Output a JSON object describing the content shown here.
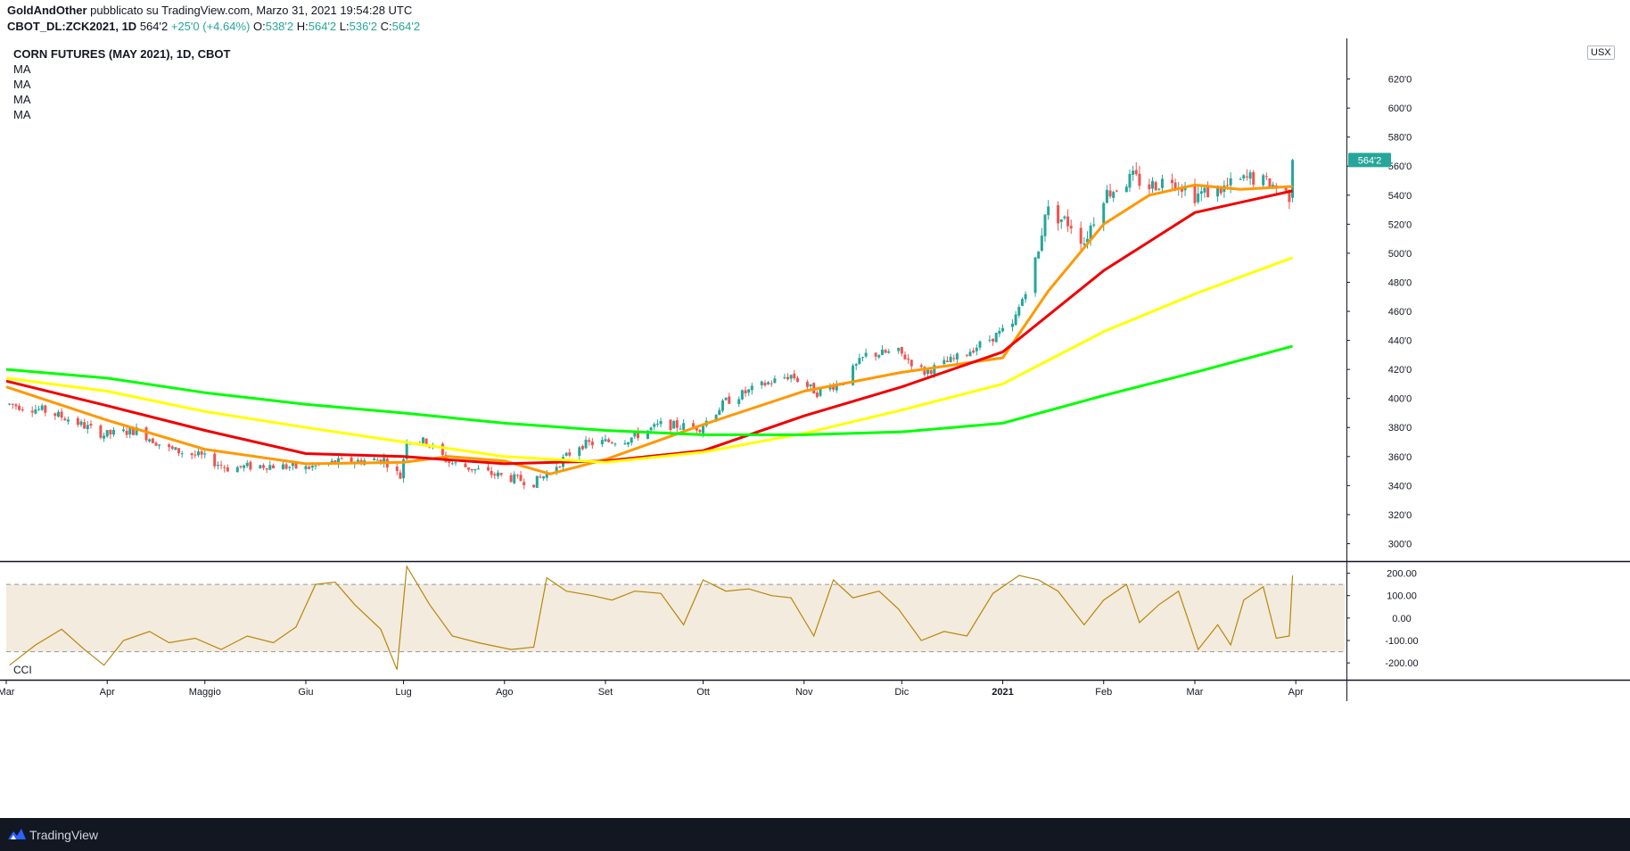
{
  "header": {
    "author": "GoldAndOther",
    "published": "pubblicato su TradingView.com, Marzo 31, 2021 19:54:28 UTC",
    "symbol": "CBOT_DL:ZCK2021, 1D",
    "last": "564'2",
    "change": "+25'0 (+4.64%)",
    "open_label": "O:",
    "open": "538'2",
    "high_label": "H:",
    "high": "564'2",
    "low_label": "L:",
    "low": "536'2",
    "close_label": "C:",
    "close": "564'2"
  },
  "legend": {
    "title": "CORN FUTURES (MAY 2021), 1D, CBOT",
    "indicators": [
      "MA",
      "MA",
      "MA",
      "MA"
    ]
  },
  "currency": "USX",
  "cci_label": "CCI",
  "footer": {
    "brand": "TradingView"
  },
  "colors": {
    "up": "#26a69a",
    "down": "#ef5350",
    "ma_orange": "#ff9800",
    "ma_red": "#f00000",
    "ma_yellow": "#ffff00",
    "ma_green": "#00ff00",
    "cci_line": "#b8860b",
    "cci_band": "#f3ebdd"
  },
  "chart_data": [
    {
      "type": "candlestick",
      "title": "CORN FUTURES (MAY 2021), 1D, CBOT",
      "x_ticks": [
        "Mar",
        "Apr",
        "Maggio",
        "Giu",
        "Lug",
        "Ago",
        "Set",
        "Ott",
        "Nov",
        "Dic",
        "2021",
        "Feb",
        "Mar",
        "Apr"
      ],
      "y_ticks": [
        "300'0",
        "320'0",
        "340'0",
        "360'0",
        "380'0",
        "400'0",
        "420'0",
        "440'0",
        "460'0",
        "480'0",
        "500'0",
        "520'0",
        "540'0",
        "560'0",
        "580'0",
        "600'0",
        "620'0"
      ],
      "ylim": [
        288,
        648
      ],
      "last_price_label": "564'2",
      "price_anchors": [
        [
          "2020-03-02",
          396
        ],
        [
          "2020-03-12",
          392
        ],
        [
          "2020-03-20",
          386
        ],
        [
          "2020-03-31",
          375
        ],
        [
          "2020-04-10",
          378
        ],
        [
          "2020-04-20",
          365
        ],
        [
          "2020-04-30",
          360
        ],
        [
          "2020-05-08",
          352
        ],
        [
          "2020-05-20",
          354
        ],
        [
          "2020-06-01",
          352
        ],
        [
          "2020-06-10",
          356
        ],
        [
          "2020-06-25",
          358
        ],
        [
          "2020-06-30",
          346
        ],
        [
          "2020-07-02",
          372
        ],
        [
          "2020-07-08",
          370
        ],
        [
          "2020-07-15",
          356
        ],
        [
          "2020-07-28",
          348
        ],
        [
          "2020-08-10",
          342
        ],
        [
          "2020-08-14",
          348
        ],
        [
          "2020-08-24",
          368
        ],
        [
          "2020-09-08",
          372
        ],
        [
          "2020-09-18",
          382
        ],
        [
          "2020-09-30",
          380
        ],
        [
          "2020-10-08",
          398
        ],
        [
          "2020-10-20",
          410
        ],
        [
          "2020-10-28",
          416
        ],
        [
          "2020-11-05",
          404
        ],
        [
          "2020-11-13",
          412
        ],
        [
          "2020-11-20",
          430
        ],
        [
          "2020-11-30",
          432
        ],
        [
          "2020-12-08",
          418
        ],
        [
          "2020-12-18",
          428
        ],
        [
          "2021-01-04",
          450
        ],
        [
          "2021-01-12",
          500
        ],
        [
          "2021-01-14",
          530
        ],
        [
          "2021-01-22",
          520
        ],
        [
          "2021-01-26",
          508
        ],
        [
          "2021-02-01",
          540
        ],
        [
          "2021-02-10",
          552
        ],
        [
          "2021-02-15",
          546
        ],
        [
          "2021-02-22",
          552
        ],
        [
          "2021-03-01",
          540
        ],
        [
          "2021-03-10",
          545
        ],
        [
          "2021-03-18",
          552
        ],
        [
          "2021-03-25",
          547
        ],
        [
          "2021-03-30",
          540
        ],
        [
          "2021-03-31",
          564.25
        ]
      ],
      "moving_averages": [
        {
          "label": "MA",
          "color": "#ff9800",
          "points": [
            [
              "2020-03-01",
              408
            ],
            [
              "2020-04-01",
              385
            ],
            [
              "2020-05-01",
              365
            ],
            [
              "2020-06-01",
              355
            ],
            [
              "2020-07-01",
              356
            ],
            [
              "2020-07-15",
              360
            ],
            [
              "2020-08-01",
              357
            ],
            [
              "2020-08-15",
              348
            ],
            [
              "2020-09-01",
              358
            ],
            [
              "2020-10-01",
              382
            ],
            [
              "2020-11-01",
              405
            ],
            [
              "2020-12-01",
              418
            ],
            [
              "2021-01-01",
              428
            ],
            [
              "2021-01-15",
              474
            ],
            [
              "2021-02-01",
              520
            ],
            [
              "2021-02-15",
              540
            ],
            [
              "2021-03-01",
              547
            ],
            [
              "2021-03-15",
              544
            ],
            [
              "2021-03-31",
              546
            ]
          ]
        },
        {
          "label": "MA",
          "color": "#f00000",
          "points": [
            [
              "2020-03-01",
              412
            ],
            [
              "2020-04-01",
              395
            ],
            [
              "2020-05-01",
              378
            ],
            [
              "2020-06-01",
              362
            ],
            [
              "2020-07-01",
              360
            ],
            [
              "2020-08-01",
              355
            ],
            [
              "2020-09-01",
              357
            ],
            [
              "2020-10-01",
              364
            ],
            [
              "2020-11-01",
              388
            ],
            [
              "2020-12-01",
              408
            ],
            [
              "2021-01-01",
              432
            ],
            [
              "2021-02-01",
              488
            ],
            [
              "2021-03-01",
              528
            ],
            [
              "2021-03-31",
              543
            ]
          ]
        },
        {
          "label": "MA",
          "color": "#ffff00",
          "points": [
            [
              "2020-03-01",
              414
            ],
            [
              "2020-04-01",
              405
            ],
            [
              "2020-05-01",
              391
            ],
            [
              "2020-06-01",
              380
            ],
            [
              "2020-07-01",
              370
            ],
            [
              "2020-08-01",
              360
            ],
            [
              "2020-09-01",
              356
            ],
            [
              "2020-10-01",
              363
            ],
            [
              "2020-11-01",
              376
            ],
            [
              "2020-12-01",
              392
            ],
            [
              "2021-01-01",
              410
            ],
            [
              "2021-02-01",
              446
            ],
            [
              "2021-03-01",
              472
            ],
            [
              "2021-03-31",
              497
            ]
          ]
        },
        {
          "label": "MA",
          "color": "#00ff00",
          "points": [
            [
              "2020-03-01",
              420
            ],
            [
              "2020-04-01",
              414
            ],
            [
              "2020-05-01",
              404
            ],
            [
              "2020-06-01",
              396
            ],
            [
              "2020-07-01",
              390
            ],
            [
              "2020-08-01",
              383
            ],
            [
              "2020-09-01",
              378
            ],
            [
              "2020-10-01",
              375
            ],
            [
              "2020-11-01",
              375
            ],
            [
              "2020-12-01",
              377
            ],
            [
              "2021-01-01",
              383
            ],
            [
              "2021-02-01",
              402
            ],
            [
              "2021-03-01",
              418
            ],
            [
              "2021-03-31",
              436
            ]
          ]
        }
      ]
    },
    {
      "type": "line",
      "title": "CCI",
      "y_ticks": [
        "200.00",
        "100.00",
        "0.00",
        "-100.00",
        "-200.00"
      ],
      "ylim": [
        -275,
        250
      ],
      "bands": [
        -150,
        150
      ],
      "points": [
        [
          "2020-03-02",
          -210
        ],
        [
          "2020-03-10",
          -120
        ],
        [
          "2020-03-18",
          -50
        ],
        [
          "2020-03-25",
          -140
        ],
        [
          "2020-03-31",
          -210
        ],
        [
          "2020-04-06",
          -100
        ],
        [
          "2020-04-14",
          -60
        ],
        [
          "2020-04-20",
          -110
        ],
        [
          "2020-04-28",
          -90
        ],
        [
          "2020-05-06",
          -140
        ],
        [
          "2020-05-14",
          -80
        ],
        [
          "2020-05-22",
          -110
        ],
        [
          "2020-05-29",
          -40
        ],
        [
          "2020-06-04",
          150
        ],
        [
          "2020-06-10",
          160
        ],
        [
          "2020-06-16",
          60
        ],
        [
          "2020-06-24",
          -50
        ],
        [
          "2020-06-29",
          -230
        ],
        [
          "2020-07-02",
          230
        ],
        [
          "2020-07-09",
          60
        ],
        [
          "2020-07-16",
          -80
        ],
        [
          "2020-07-24",
          -110
        ],
        [
          "2020-08-03",
          -140
        ],
        [
          "2020-08-10",
          -130
        ],
        [
          "2020-08-14",
          180
        ],
        [
          "2020-08-20",
          120
        ],
        [
          "2020-08-28",
          100
        ],
        [
          "2020-09-03",
          80
        ],
        [
          "2020-09-10",
          120
        ],
        [
          "2020-09-18",
          110
        ],
        [
          "2020-09-25",
          -30
        ],
        [
          "2020-10-01",
          170
        ],
        [
          "2020-10-08",
          120
        ],
        [
          "2020-10-15",
          130
        ],
        [
          "2020-10-22",
          100
        ],
        [
          "2020-10-28",
          90
        ],
        [
          "2020-11-04",
          -80
        ],
        [
          "2020-11-10",
          170
        ],
        [
          "2020-11-16",
          90
        ],
        [
          "2020-11-24",
          120
        ],
        [
          "2020-11-30",
          40
        ],
        [
          "2020-12-07",
          -100
        ],
        [
          "2020-12-14",
          -60
        ],
        [
          "2020-12-21",
          -80
        ],
        [
          "2020-12-29",
          110
        ],
        [
          "2021-01-06",
          190
        ],
        [
          "2021-01-12",
          170
        ],
        [
          "2021-01-18",
          120
        ],
        [
          "2021-01-26",
          -30
        ],
        [
          "2021-02-01",
          80
        ],
        [
          "2021-02-08",
          150
        ],
        [
          "2021-02-12",
          -20
        ],
        [
          "2021-02-18",
          60
        ],
        [
          "2021-02-24",
          120
        ],
        [
          "2021-03-02",
          -140
        ],
        [
          "2021-03-08",
          -30
        ],
        [
          "2021-03-12",
          -120
        ],
        [
          "2021-03-16",
          80
        ],
        [
          "2021-03-22",
          140
        ],
        [
          "2021-03-26",
          -90
        ],
        [
          "2021-03-30",
          -80
        ],
        [
          "2021-03-31",
          190
        ]
      ]
    }
  ]
}
